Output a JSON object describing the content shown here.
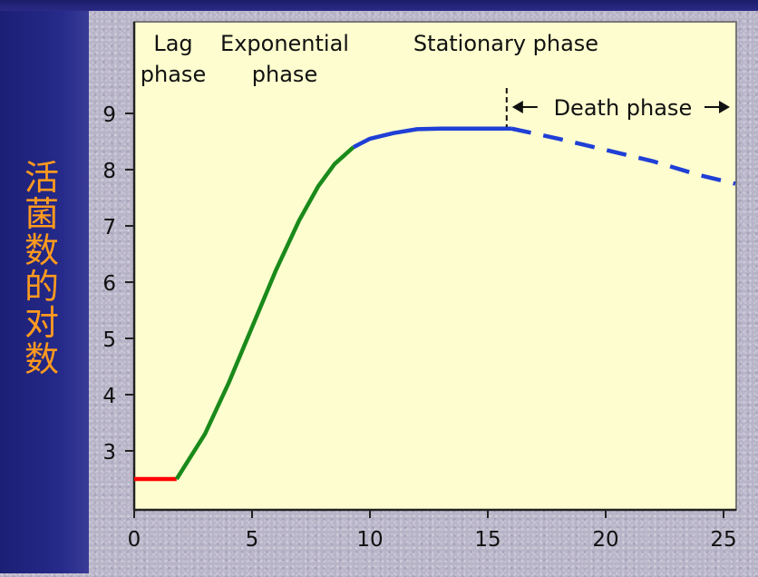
{
  "chart_data": {
    "type": "line",
    "title": "",
    "xlabel": "",
    "ylabel": "活菌数的对数",
    "xlim": [
      0,
      25.5
    ],
    "ylim": [
      2.0,
      9.6
    ],
    "x_ticks": [
      "0",
      "5",
      "10",
      "15",
      "20",
      "25"
    ],
    "y_ticks": [
      "3",
      "4",
      "5",
      "6",
      "7",
      "8",
      "9"
    ],
    "grid": false,
    "annotations": {
      "lag": "Lag\nphase",
      "exponential": "Exponential\nphase",
      "stationary": "Stationary phase",
      "death": "Death phase"
    },
    "series": [
      {
        "color": "#ff0000",
        "style": "solid",
        "x": [
          0,
          1.8
        ],
        "y": [
          2.5,
          2.5
        ]
      },
      {
        "color": "#1a8a1a",
        "style": "solid",
        "x": [
          1.8,
          3,
          4,
          5,
          6,
          7,
          7.8,
          8.5,
          9.3
        ],
        "y": [
          2.5,
          3.3,
          4.2,
          5.2,
          6.2,
          7.1,
          7.7,
          8.1,
          8.4
        ]
      },
      {
        "color": "#1f3fd6",
        "style": "solid",
        "x": [
          9.3,
          10,
          11,
          12,
          13,
          14,
          15,
          16
        ],
        "y": [
          8.4,
          8.55,
          8.65,
          8.72,
          8.73,
          8.73,
          8.73,
          8.73
        ]
      },
      {
        "color": "#1f3fd6",
        "style": "dashed",
        "x": [
          16,
          18,
          20,
          22,
          24,
          25.5
        ],
        "y": [
          8.73,
          8.55,
          8.35,
          8.15,
          7.9,
          7.75
        ]
      }
    ]
  }
}
